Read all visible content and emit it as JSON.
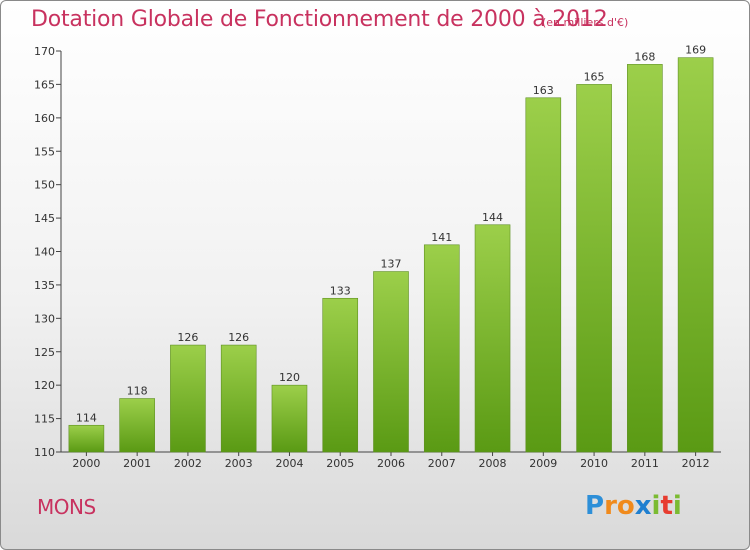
{
  "header": {
    "title": "Dotation Globale de Fonctionnement de 2000 à 2012",
    "subtitle": "(en milliers d'€)"
  },
  "footer": {
    "place": "MONS",
    "logo_letters": [
      "P",
      "r",
      "o",
      "x",
      "i",
      "t",
      "i"
    ],
    "logo_colors": [
      "#2d8fd8",
      "#f08a1c",
      "#f08a1c",
      "#1f7fd0",
      "#7bbb32",
      "#e73c2f",
      "#7bbb32"
    ]
  },
  "colors": {
    "bar_top": "#9ccf4a",
    "bar_bottom": "#5a9a14",
    "title": "#c8325f"
  },
  "chart_data": {
    "type": "bar",
    "title": "Dotation Globale de Fonctionnement de 2000 à 2012",
    "subtitle": "(en milliers d'€)",
    "categories": [
      "2000",
      "2001",
      "2002",
      "2003",
      "2004",
      "2005",
      "2006",
      "2007",
      "2008",
      "2009",
      "2010",
      "2011",
      "2012"
    ],
    "values": [
      114,
      118,
      126,
      126,
      120,
      133,
      137,
      141,
      144,
      163,
      165,
      168,
      169
    ],
    "ylim": [
      110,
      170
    ],
    "yticks": [
      110,
      115,
      120,
      125,
      130,
      135,
      140,
      145,
      150,
      155,
      160,
      165,
      170
    ],
    "grid": false,
    "data_labels": true
  }
}
